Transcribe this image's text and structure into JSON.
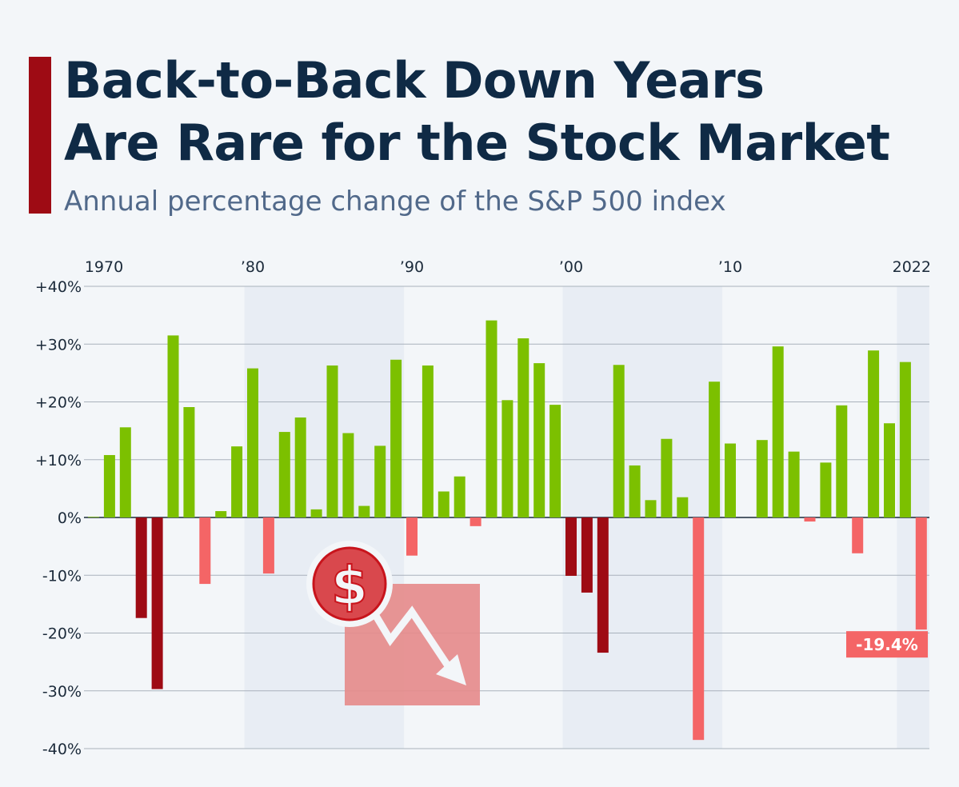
{
  "title_lines": [
    "Back-to-Back Down Years",
    "Are Rare for the Stock Market"
  ],
  "subtitle": "Annual percentage change of the S&P 500 index",
  "colors": {
    "up": "#7cc000",
    "down": "#f46566",
    "back_to_back_down": "#9e0b14",
    "band": "#e8edf4",
    "accent": "#9e0b14"
  },
  "icon": "dollar-falling-chart-icon",
  "chart_data": {
    "type": "bar",
    "title": "Back-to-Back Down Years Are Rare for the Stock Market",
    "subtitle": "Annual percentage change of the S&P 500 index",
    "xlabel": "",
    "ylabel": "",
    "ylim": [
      -40,
      40
    ],
    "y_ticks": [
      {
        "v": 40,
        "label": "+40%"
      },
      {
        "v": 30,
        "label": "+30%"
      },
      {
        "v": 20,
        "label": "+20%"
      },
      {
        "v": 10,
        "label": "+10%"
      },
      {
        "v": 0,
        "label": "0%"
      },
      {
        "v": -10,
        "label": "-10%"
      },
      {
        "v": -20,
        "label": "-20%"
      },
      {
        "v": -30,
        "label": "-30%"
      },
      {
        "v": -40,
        "label": "-40%"
      }
    ],
    "x_ticks": [
      {
        "year": 1970,
        "label": "1970"
      },
      {
        "year": 1980,
        "label": "’80"
      },
      {
        "year": 1990,
        "label": "’90"
      },
      {
        "year": 2000,
        "label": "’00"
      },
      {
        "year": 2010,
        "label": "’10"
      },
      {
        "year": 2022,
        "label": "2022"
      }
    ],
    "grid": true,
    "shaded_periods": [
      [
        1980,
        1989
      ],
      [
        2000,
        2009
      ],
      [
        2021,
        2022
      ]
    ],
    "years": [
      1970,
      1971,
      1972,
      1973,
      1974,
      1975,
      1976,
      1977,
      1978,
      1979,
      1980,
      1981,
      1982,
      1983,
      1984,
      1985,
      1986,
      1987,
      1988,
      1989,
      1990,
      1991,
      1992,
      1993,
      1994,
      1995,
      1996,
      1997,
      1998,
      1999,
      2000,
      2001,
      2002,
      2003,
      2004,
      2005,
      2006,
      2007,
      2008,
      2009,
      2010,
      2011,
      2012,
      2013,
      2014,
      2015,
      2016,
      2017,
      2018,
      2019,
      2020,
      2021,
      2022
    ],
    "values": [
      0.1,
      10.8,
      15.6,
      -17.4,
      -29.7,
      31.5,
      19.1,
      -11.5,
      1.1,
      12.3,
      25.8,
      -9.7,
      14.8,
      17.3,
      1.4,
      26.3,
      14.6,
      2.0,
      12.4,
      27.3,
      -6.6,
      26.3,
      4.5,
      7.1,
      -1.5,
      34.1,
      20.3,
      31.0,
      26.7,
      19.5,
      -10.1,
      -13.0,
      -23.4,
      26.4,
      9.0,
      3.0,
      13.6,
      3.5,
      -38.5,
      23.5,
      12.8,
      0.0,
      13.4,
      29.6,
      11.4,
      -0.7,
      9.5,
      19.4,
      -6.2,
      28.9,
      16.3,
      26.9,
      -19.4
    ],
    "back_to_back_down_years": [
      1973,
      1974,
      2000,
      2001,
      2002
    ],
    "annotations": [
      {
        "year": 2022,
        "label": "-19.4%"
      }
    ]
  }
}
